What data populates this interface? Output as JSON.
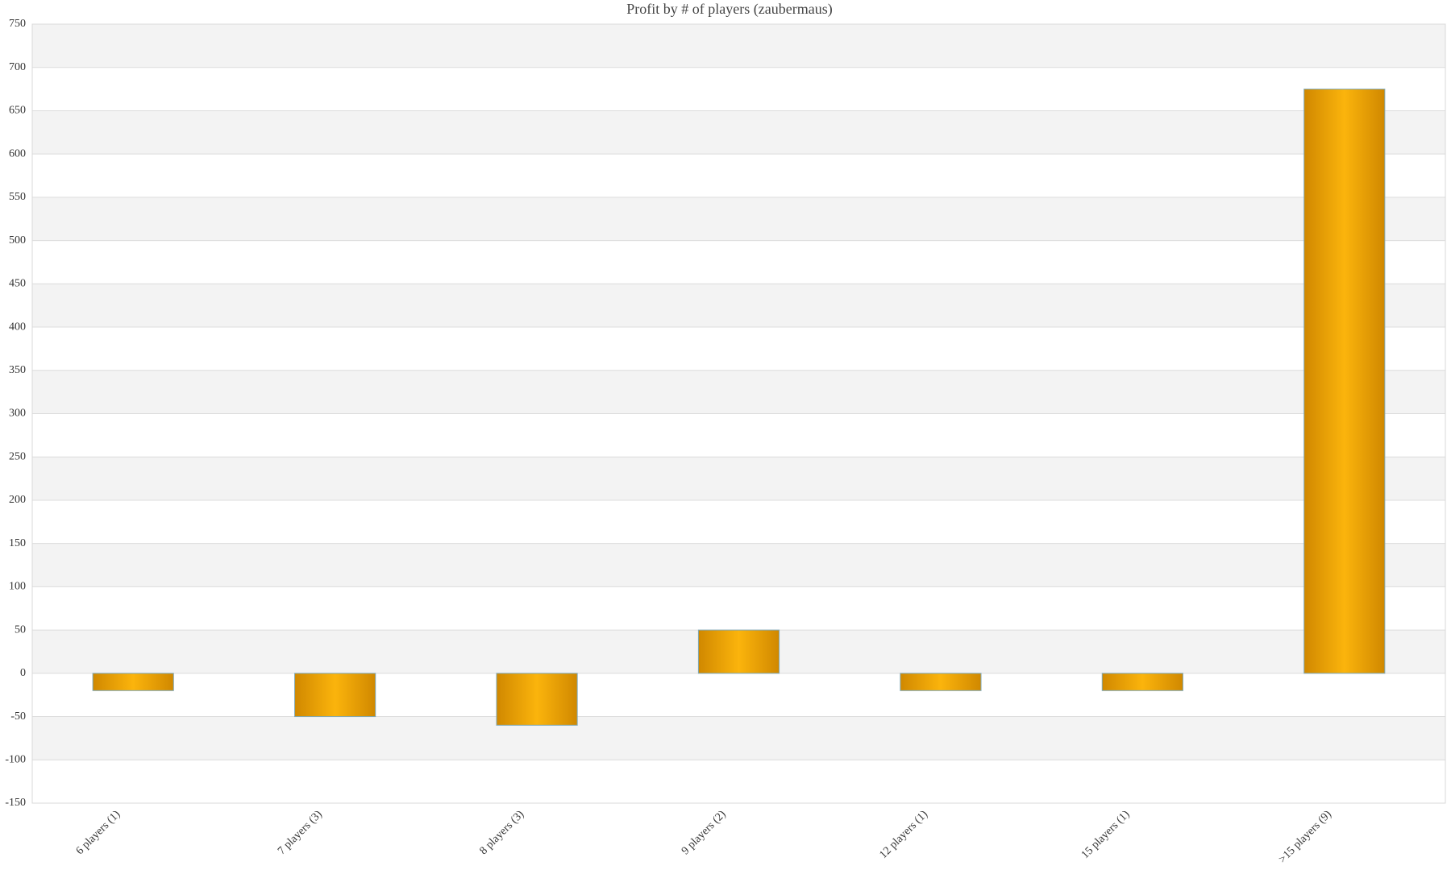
{
  "chart_data": {
    "type": "bar",
    "title": "Profit by # of players  (zaubermaus)",
    "categories": [
      "6 players (1)",
      "7 players (3)",
      "8 players (3)",
      "9 players (2)",
      "12 players (1)",
      "15 players (1)",
      ">15 players (9)"
    ],
    "values": [
      -20,
      -50,
      -60,
      50,
      -20,
      -20,
      675
    ],
    "color": "#fbb40c",
    "ylim": [
      -150,
      750
    ],
    "yticks": [
      -150,
      -100,
      -50,
      0,
      50,
      100,
      150,
      200,
      250,
      300,
      350,
      400,
      450,
      500,
      550,
      600,
      650,
      700,
      750
    ],
    "grid": true
  }
}
